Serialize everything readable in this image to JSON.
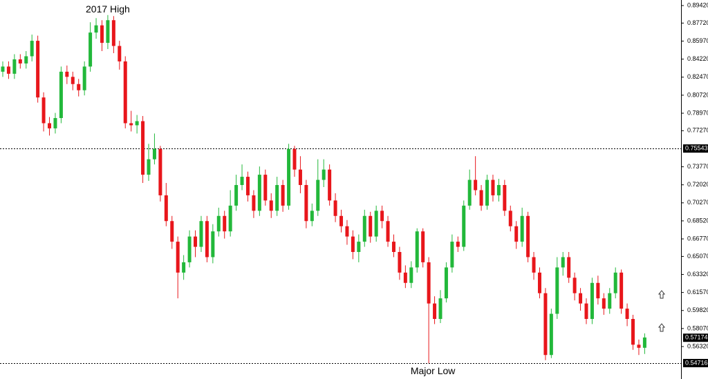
{
  "chart_data": {
    "type": "candlestick",
    "up_color": "#22b83a",
    "down_color": "#e8161b",
    "ylim": [
      0.5317,
      0.8996
    ],
    "yticks": [
      {
        "value": 0.8942,
        "label": "0.89420"
      },
      {
        "value": 0.8772,
        "label": "0.87720"
      },
      {
        "value": 0.8597,
        "label": "0.85970"
      },
      {
        "value": 0.8422,
        "label": "0.84220"
      },
      {
        "value": 0.8247,
        "label": "0.82470"
      },
      {
        "value": 0.8072,
        "label": "0.80720"
      },
      {
        "value": 0.7897,
        "label": "0.78970"
      },
      {
        "value": 0.7727,
        "label": "0.77270"
      },
      {
        "value": 0.7377,
        "label": "0.73770"
      },
      {
        "value": 0.7202,
        "label": "0.72020"
      },
      {
        "value": 0.7027,
        "label": "0.70270"
      },
      {
        "value": 0.6852,
        "label": "0.68520"
      },
      {
        "value": 0.6677,
        "label": "0.66770"
      },
      {
        "value": 0.6507,
        "label": "0.65070"
      },
      {
        "value": 0.6332,
        "label": "0.63320"
      },
      {
        "value": 0.6157,
        "label": "0.61570"
      },
      {
        "value": 0.5982,
        "label": "0.59820"
      },
      {
        "value": 0.5807,
        "label": "0.58070"
      },
      {
        "value": 0.5632,
        "label": "0.56320"
      }
    ],
    "levels": [
      0.75543,
      0.54716
    ],
    "current_price": 0.57174,
    "annotations": [
      "2017 High",
      "Major Low"
    ],
    "open": [
      0.83,
      0.835,
      0.828,
      0.842,
      0.838,
      0.845,
      0.86,
      0.805,
      0.78,
      0.775,
      0.785,
      0.83,
      0.825,
      0.818,
      0.812,
      0.835,
      0.868,
      0.875,
      0.858,
      0.88,
      0.855,
      0.84,
      0.78,
      0.778,
      0.782,
      0.73,
      0.745,
      0.755,
      0.71,
      0.685,
      0.665,
      0.635,
      0.645,
      0.67,
      0.66,
      0.685,
      0.65,
      0.675,
      0.69,
      0.675,
      0.7,
      0.72,
      0.728,
      0.71,
      0.695,
      0.73,
      0.705,
      0.695,
      0.72,
      0.7,
      0.755,
      0.735,
      0.72,
      0.685,
      0.695,
      0.725,
      0.735,
      0.705,
      0.69,
      0.68,
      0.67,
      0.655,
      0.665,
      0.69,
      0.67,
      0.695,
      0.685,
      0.665,
      0.655,
      0.635,
      0.625,
      0.64,
      0.675,
      0.645,
      0.605,
      0.59,
      0.61,
      0.64,
      0.665,
      0.66,
      0.7,
      0.725,
      0.715,
      0.7,
      0.725,
      0.71,
      0.72,
      0.695,
      0.68,
      0.665,
      0.69,
      0.65,
      0.635,
      0.615,
      0.555,
      0.595,
      0.64,
      0.65,
      0.63,
      0.615,
      0.605,
      0.59,
      0.625,
      0.61,
      0.6,
      0.615,
      0.635,
      0.6,
      0.59,
      0.565,
      0.562
    ],
    "high": [
      0.84,
      0.84,
      0.847,
      0.847,
      0.85,
      0.866,
      0.865,
      0.81,
      0.786,
      0.79,
      0.835,
      0.836,
      0.83,
      0.823,
      0.84,
      0.878,
      0.882,
      0.88,
      0.885,
      0.884,
      0.86,
      0.845,
      0.792,
      0.788,
      0.787,
      0.76,
      0.77,
      0.758,
      0.722,
      0.69,
      0.67,
      0.652,
      0.676,
      0.676,
      0.69,
      0.69,
      0.682,
      0.698,
      0.695,
      0.715,
      0.73,
      0.74,
      0.733,
      0.715,
      0.738,
      0.735,
      0.712,
      0.728,
      0.725,
      0.76,
      0.758,
      0.748,
      0.725,
      0.702,
      0.745,
      0.745,
      0.74,
      0.712,
      0.696,
      0.686,
      0.676,
      0.672,
      0.696,
      0.694,
      0.7,
      0.7,
      0.69,
      0.672,
      0.66,
      0.642,
      0.646,
      0.678,
      0.678,
      0.65,
      0.612,
      0.618,
      0.645,
      0.672,
      0.67,
      0.705,
      0.735,
      0.748,
      0.72,
      0.73,
      0.73,
      0.726,
      0.725,
      0.7,
      0.685,
      0.698,
      0.694,
      0.655,
      0.64,
      0.62,
      0.6,
      0.65,
      0.655,
      0.655,
      0.635,
      0.62,
      0.61,
      0.63,
      0.632,
      0.615,
      0.62,
      0.64,
      0.638,
      0.605,
      0.594,
      0.57,
      0.576
    ],
    "low": [
      0.825,
      0.823,
      0.823,
      0.833,
      0.833,
      0.84,
      0.8,
      0.772,
      0.768,
      0.77,
      0.78,
      0.818,
      0.812,
      0.806,
      0.807,
      0.83,
      0.862,
      0.85,
      0.852,
      0.848,
      0.832,
      0.775,
      0.772,
      0.77,
      0.722,
      0.724,
      0.74,
      0.704,
      0.68,
      0.658,
      0.61,
      0.628,
      0.64,
      0.65,
      0.655,
      0.645,
      0.644,
      0.67,
      0.668,
      0.67,
      0.695,
      0.715,
      0.704,
      0.688,
      0.69,
      0.7,
      0.688,
      0.69,
      0.694,
      0.696,
      0.728,
      0.712,
      0.678,
      0.68,
      0.69,
      0.718,
      0.7,
      0.684,
      0.674,
      0.662,
      0.648,
      0.645,
      0.66,
      0.664,
      0.665,
      0.678,
      0.66,
      0.65,
      0.628,
      0.62,
      0.62,
      0.635,
      0.64,
      0.547,
      0.585,
      0.586,
      0.606,
      0.635,
      0.655,
      0.656,
      0.696,
      0.71,
      0.695,
      0.696,
      0.704,
      0.704,
      0.69,
      0.675,
      0.658,
      0.66,
      0.645,
      0.628,
      0.61,
      0.55,
      0.552,
      0.59,
      0.632,
      0.625,
      0.608,
      0.598,
      0.585,
      0.585,
      0.604,
      0.594,
      0.595,
      0.61,
      0.595,
      0.583,
      0.56,
      0.555,
      0.556
    ],
    "close": [
      0.835,
      0.828,
      0.842,
      0.838,
      0.845,
      0.86,
      0.805,
      0.78,
      0.775,
      0.785,
      0.83,
      0.825,
      0.818,
      0.812,
      0.835,
      0.868,
      0.875,
      0.858,
      0.88,
      0.855,
      0.84,
      0.78,
      0.778,
      0.782,
      0.73,
      0.745,
      0.755,
      0.71,
      0.685,
      0.665,
      0.635,
      0.645,
      0.67,
      0.66,
      0.685,
      0.65,
      0.675,
      0.69,
      0.675,
      0.7,
      0.72,
      0.728,
      0.71,
      0.695,
      0.73,
      0.705,
      0.695,
      0.72,
      0.7,
      0.755,
      0.735,
      0.72,
      0.685,
      0.695,
      0.725,
      0.735,
      0.705,
      0.69,
      0.68,
      0.67,
      0.655,
      0.665,
      0.69,
      0.67,
      0.695,
      0.685,
      0.665,
      0.655,
      0.635,
      0.625,
      0.64,
      0.675,
      0.645,
      0.605,
      0.59,
      0.61,
      0.64,
      0.665,
      0.66,
      0.7,
      0.725,
      0.715,
      0.7,
      0.725,
      0.71,
      0.72,
      0.695,
      0.68,
      0.665,
      0.69,
      0.65,
      0.635,
      0.615,
      0.555,
      0.595,
      0.64,
      0.65,
      0.63,
      0.615,
      0.605,
      0.59,
      0.625,
      0.61,
      0.6,
      0.615,
      0.635,
      0.6,
      0.59,
      0.565,
      0.562,
      0.572
    ]
  }
}
